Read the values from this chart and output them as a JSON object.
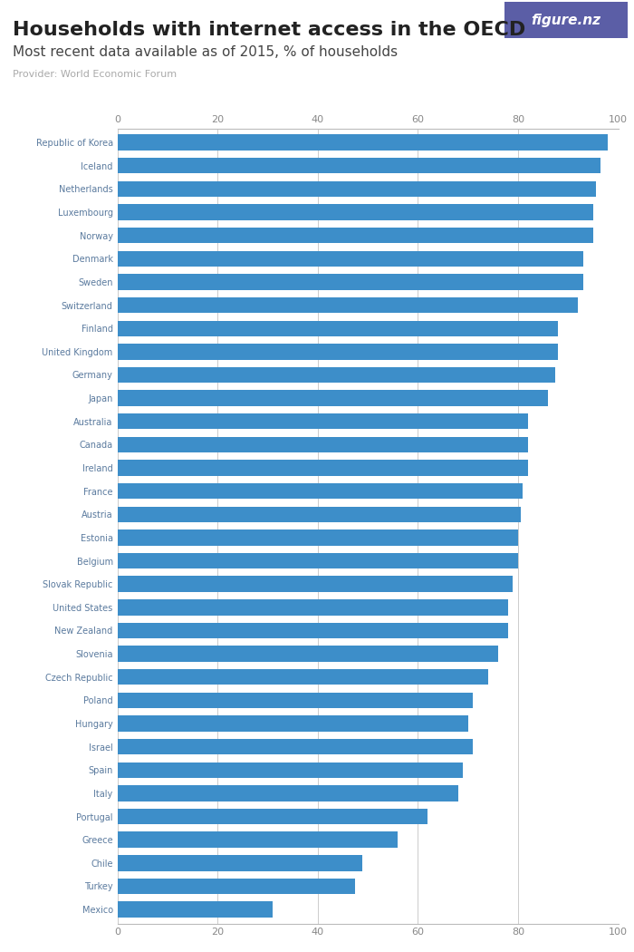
{
  "title": "Households with internet access in the OECD",
  "subtitle": "Most recent data available as of 2015, % of households",
  "provider": "Provider: World Economic Forum",
  "bar_color": "#3d8ec9",
  "background_color": "#ffffff",
  "logo_bg_color": "#5b5ea6",
  "logo_text": "figure.nz",
  "countries": [
    "Republic of Korea",
    "Iceland",
    "Netherlands",
    "Luxembourg",
    "Norway",
    "Denmark",
    "Sweden",
    "Switzerland",
    "Finland",
    "United Kingdom",
    "Germany",
    "Japan",
    "Australia",
    "Canada",
    "Ireland",
    "France",
    "Austria",
    "Estonia",
    "Belgium",
    "Slovak Republic",
    "United States",
    "New Zealand",
    "Slovenia",
    "Czech Republic",
    "Poland",
    "Hungary",
    "Israel",
    "Spain",
    "Italy",
    "Portugal",
    "Greece",
    "Chile",
    "Turkey",
    "Mexico"
  ],
  "values": [
    98.0,
    96.5,
    95.5,
    95.0,
    95.0,
    93.0,
    93.0,
    92.0,
    88.0,
    88.0,
    87.5,
    86.0,
    82.0,
    82.0,
    82.0,
    81.0,
    80.5,
    80.0,
    80.0,
    79.0,
    78.0,
    78.0,
    76.0,
    74.0,
    71.0,
    70.0,
    71.0,
    69.0,
    68.0,
    62.0,
    56.0,
    49.0,
    47.5,
    31.0
  ],
  "xlim": [
    0,
    100
  ],
  "xticks": [
    0,
    20,
    40,
    60,
    80,
    100
  ],
  "grid_color": "#cccccc",
  "label_color": "#5a7a9e",
  "axis_label_color": "#888888",
  "title_color": "#222222",
  "subtitle_color": "#444444",
  "provider_color": "#aaaaaa",
  "title_fontsize": 16,
  "subtitle_fontsize": 11,
  "provider_fontsize": 8,
  "bar_label_fontsize": 7,
  "tick_fontsize": 8
}
